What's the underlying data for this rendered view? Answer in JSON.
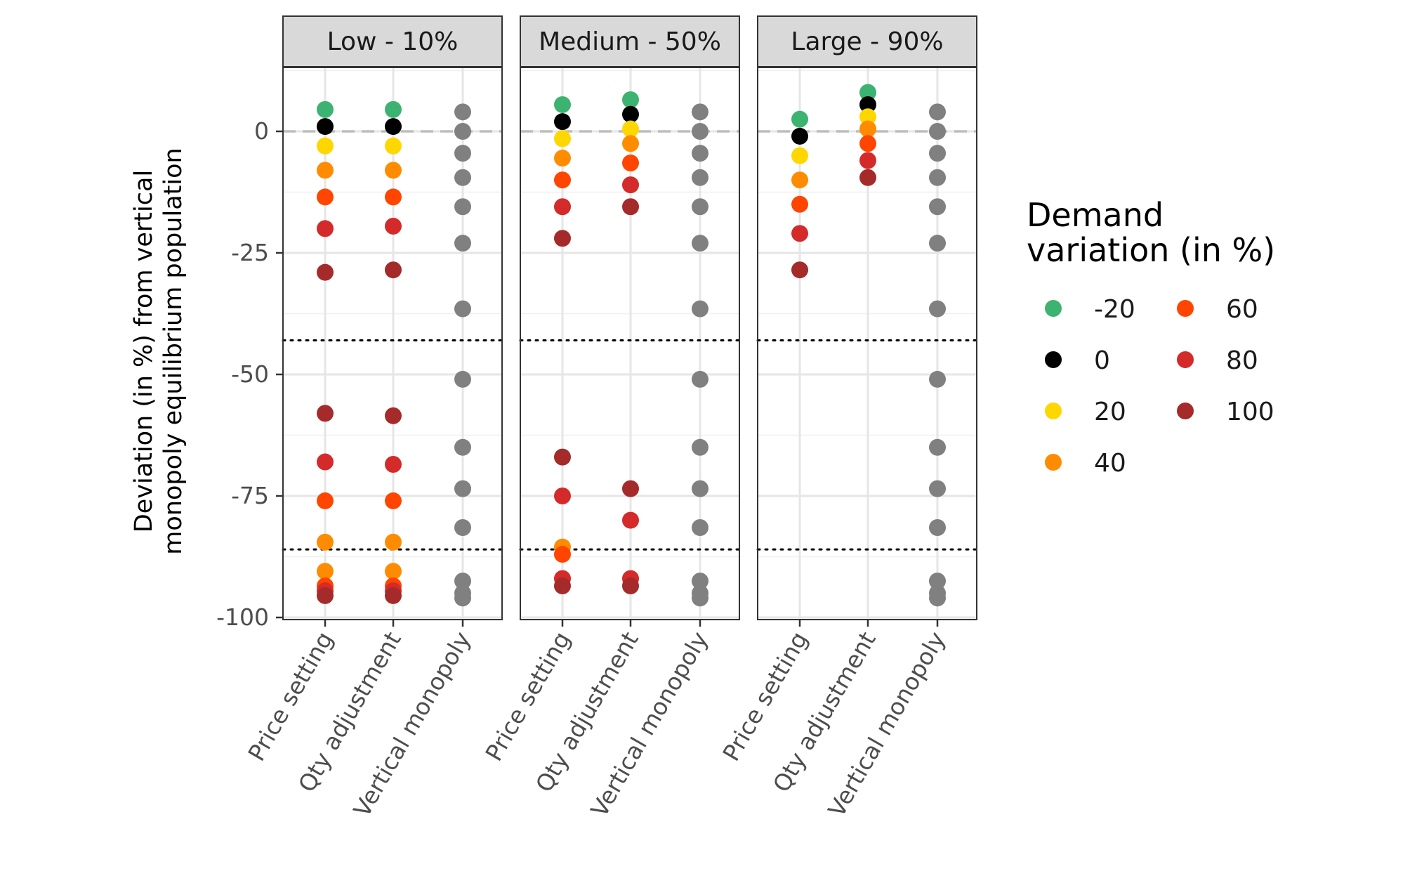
{
  "chart_data": {
    "type": "scatter",
    "facets": [
      "Low - 10%",
      "Medium - 50%",
      "Large - 90%"
    ],
    "categories": [
      "Price setting",
      "Qty adjustment",
      "Vertical monopoly"
    ],
    "ylabel_line1": "Deviation (in %) from vertical",
    "ylabel_line2": "monopoly equilibrium population",
    "xlabel": "",
    "ylim": [
      -100,
      12
    ],
    "yticks": [
      0,
      -25,
      -50,
      -75,
      -100
    ],
    "ytick_labels": [
      "0",
      "-25",
      "-50",
      "-75",
      "-100"
    ],
    "reference_line": 0,
    "dotted_lines": [
      -43,
      -86
    ],
    "grid": true,
    "legend": {
      "title_line1": "Demand",
      "title_line2": "variation (in %)",
      "placement": "right",
      "entries": [
        {
          "label": "-20",
          "color": "#3cb371"
        },
        {
          "label": "0",
          "color": "#000000"
        },
        {
          "label": "20",
          "color": "#ffd700"
        },
        {
          "label": "40",
          "color": "#ff8c00"
        },
        {
          "label": "60",
          "color": "#ff4500"
        },
        {
          "label": "80",
          "color": "#d42a2a"
        },
        {
          "label": "100",
          "color": "#a52a2a"
        }
      ]
    },
    "vertical_monopoly_color": "#808080",
    "vertical_monopoly_values": [
      4,
      0,
      -4.5,
      -9.5,
      -15.5,
      -23,
      -36.5,
      -51,
      -65,
      -73.5,
      -81.5,
      -92.5,
      -95,
      -96
    ],
    "series": [
      {
        "name": "-20",
        "values": [
          [
            4.5,
            4.5
          ],
          [
            5.5,
            6.5
          ],
          [
            2.5,
            8
          ]
        ]
      },
      {
        "name": "0",
        "values": [
          [
            1,
            1
          ],
          [
            2,
            3.5
          ],
          [
            -1,
            5.5
          ]
        ]
      },
      {
        "name": "20",
        "values": [
          [
            -3,
            -3
          ],
          [
            -1.5,
            0.5
          ],
          [
            -5,
            3
          ]
        ]
      },
      {
        "name": "40",
        "values": [
          [
            -8,
            -8
          ],
          [
            -5.5,
            -2.5
          ],
          [
            -10,
            0.5
          ]
        ]
      },
      {
        "name": "60",
        "values": [
          [
            -13.5,
            -13.5
          ],
          [
            -10,
            -6.5
          ],
          [
            -15,
            -2.5
          ]
        ]
      },
      {
        "name": "80",
        "values": [
          [
            -20,
            -19.5
          ],
          [
            -15.5,
            -11
          ],
          [
            -21,
            -6
          ]
        ]
      },
      {
        "name": "100",
        "values": [
          [
            -29,
            -28.5
          ],
          [
            -22,
            -15.5
          ],
          [
            -28.5,
            -9.5
          ]
        ]
      },
      {
        "name": "100",
        "values": [
          [
            -58,
            -58.5
          ],
          [
            -67,
            -73.5
          ],
          [
            null,
            null
          ]
        ]
      },
      {
        "name": "80",
        "values": [
          [
            -68,
            -68.5
          ],
          [
            -75,
            -80
          ],
          [
            null,
            null
          ]
        ]
      },
      {
        "name": "60",
        "values": [
          [
            -76,
            -76
          ],
          [
            null,
            null
          ],
          [
            null,
            null
          ]
        ]
      },
      {
        "name": "40",
        "values": [
          [
            -84.5,
            -84.5
          ],
          [
            -85.5,
            null
          ],
          [
            null,
            null
          ]
        ]
      },
      {
        "name": "40",
        "values": [
          [
            -90.5,
            -90.5
          ],
          [
            null,
            null
          ],
          [
            null,
            null
          ]
        ]
      },
      {
        "name": "60",
        "values": [
          [
            -93.5,
            -93.5
          ],
          [
            -87,
            null
          ],
          [
            null,
            null
          ]
        ]
      },
      {
        "name": "80",
        "values": [
          [
            -94.5,
            -94.5
          ],
          [
            -92,
            -92
          ],
          [
            null,
            null
          ]
        ]
      },
      {
        "name": "100",
        "values": [
          [
            -95.5,
            -95.5
          ],
          [
            -93.5,
            -93.5
          ],
          [
            null,
            null
          ]
        ]
      }
    ]
  }
}
